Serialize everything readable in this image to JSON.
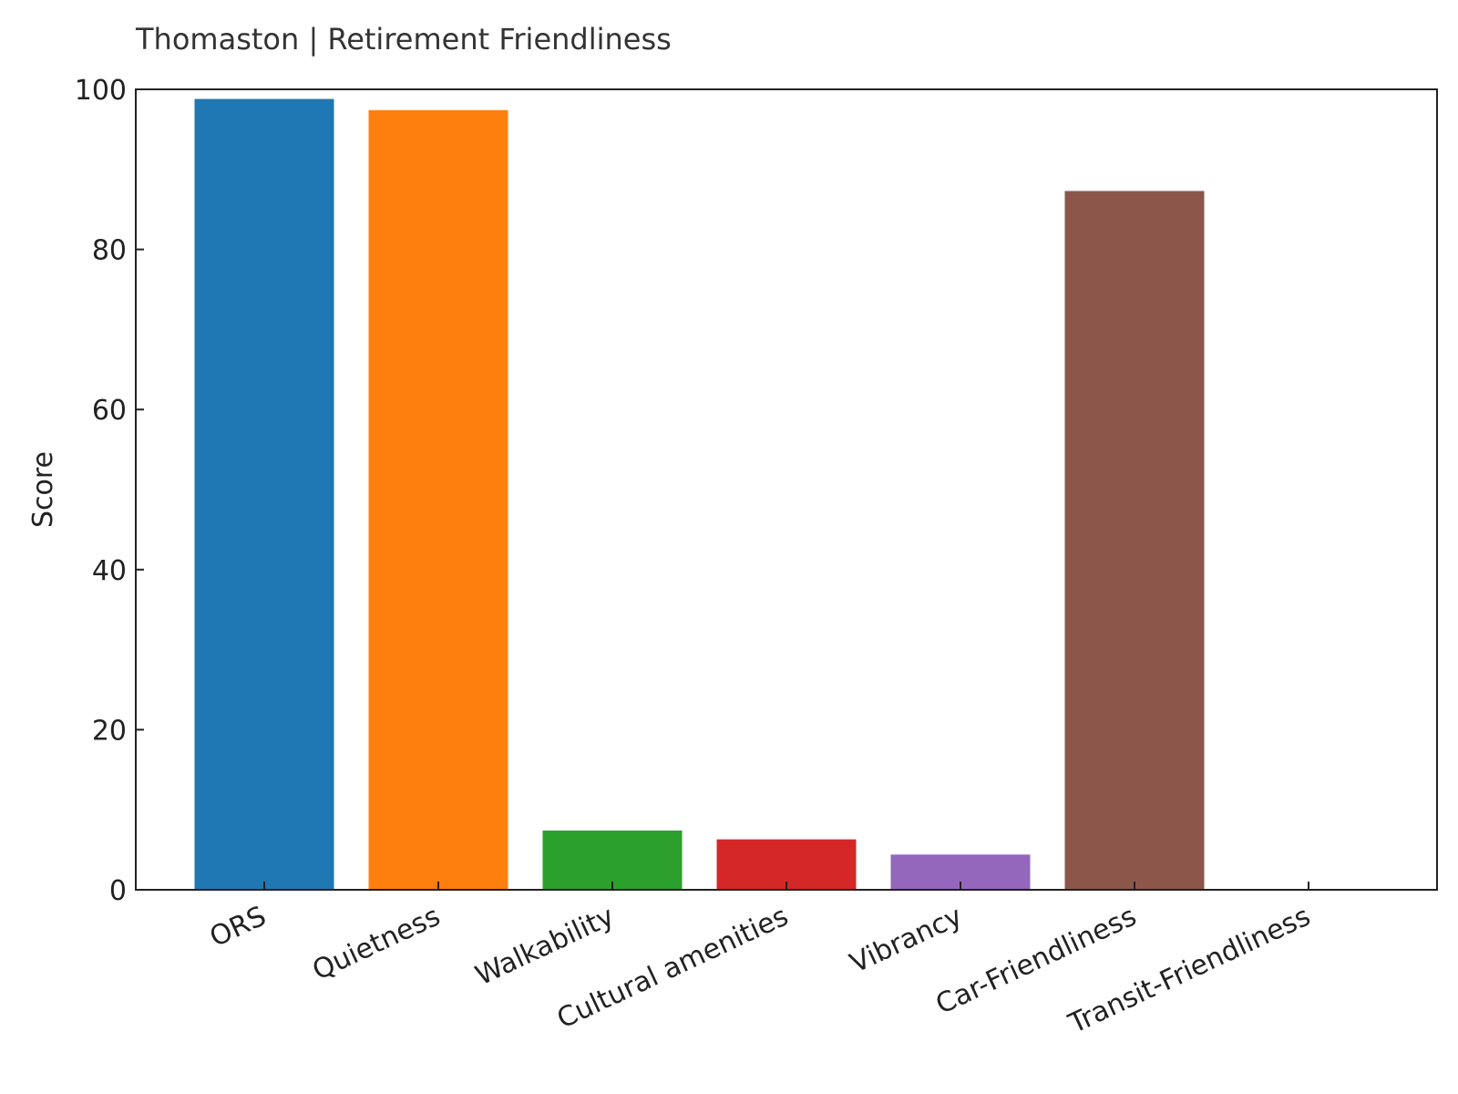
{
  "chart_data": {
    "type": "bar",
    "title": "Thomaston | Retirement Friendliness",
    "xlabel": "",
    "ylabel": "Score",
    "ylim": [
      0,
      100
    ],
    "yticks": [
      "0",
      "20",
      "40",
      "60",
      "80",
      "100"
    ],
    "grid": false,
    "categories": [
      "ORS",
      "Quietness",
      "Walkability",
      "Cultural amenities",
      "Vibrancy",
      "Car-Friendliness",
      "Transit-Friendliness"
    ],
    "values": [
      98.8,
      97.4,
      7.4,
      6.3,
      4.4,
      87.3,
      0
    ],
    "colors": [
      "#1f77b4",
      "#ff7f0e",
      "#2ca02c",
      "#d62728",
      "#9467bd",
      "#8c564b",
      "#e377c2"
    ]
  }
}
